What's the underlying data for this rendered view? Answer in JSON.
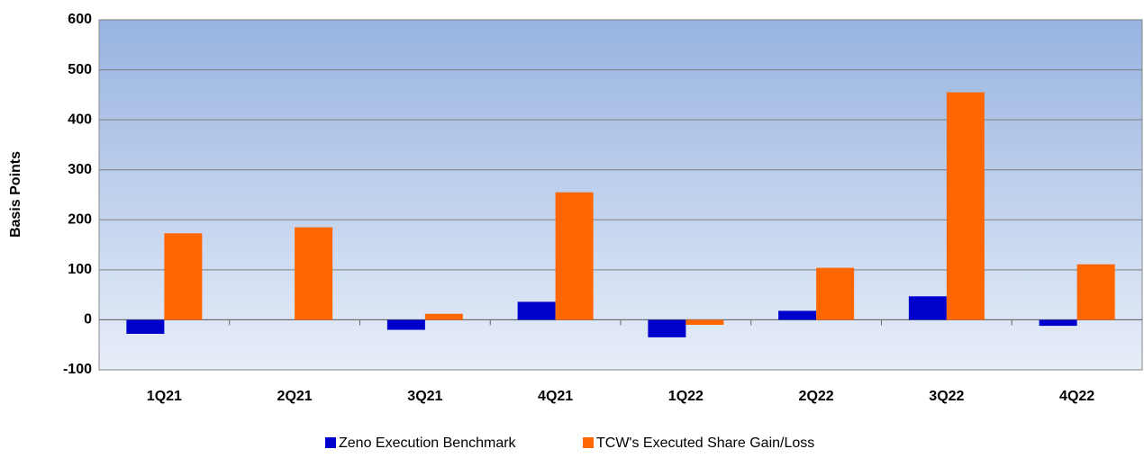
{
  "chart_data": {
    "type": "bar",
    "y_label": "Basis Points",
    "categories": [
      "1Q21",
      "2Q21",
      "3Q21",
      "4Q21",
      "1Q22",
      "2Q22",
      "3Q22",
      "4Q22"
    ],
    "series": [
      {
        "name": "Zeno Execution Benchmark",
        "color": "#0000cc",
        "values": [
          -28,
          0,
          -20,
          36,
          -35,
          18,
          47,
          -12
        ]
      },
      {
        "name": "TCW's Executed Share Gain/Loss",
        "color": "#ff6600",
        "values": [
          173,
          185,
          12,
          255,
          -10,
          104,
          455,
          111
        ]
      }
    ],
    "ylim": [
      -100,
      600
    ],
    "yticks": [
      -100,
      0,
      100,
      200,
      300,
      400,
      500,
      600
    ],
    "grid": true,
    "legend": "bottom"
  }
}
